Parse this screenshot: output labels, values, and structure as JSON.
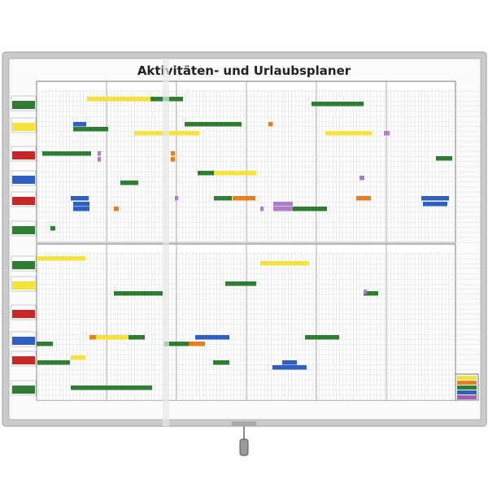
{
  "title": "Aktivitäten- und Urlaubsplaner"
}
